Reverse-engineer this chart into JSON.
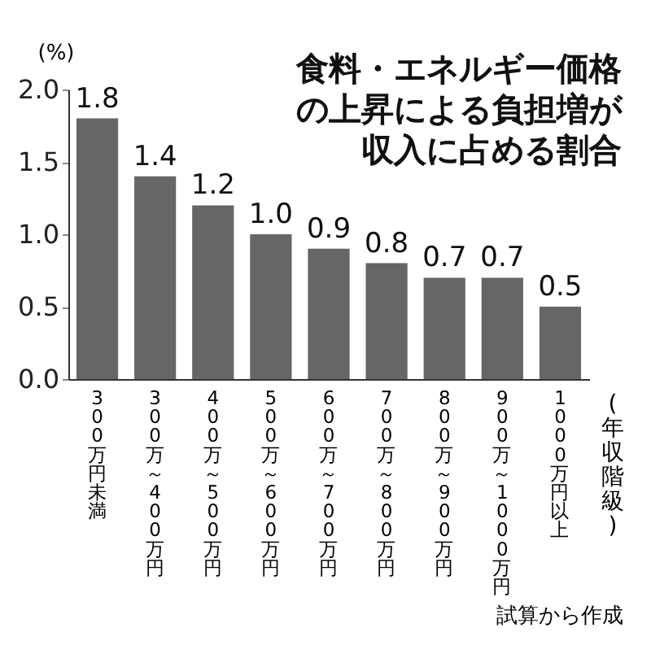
{
  "chart_data": {
    "type": "bar",
    "title": "食料・エネルギー価格の上昇による負担増が収入に占める割合",
    "ylabel": "(%)",
    "xlabel": "(年収階級)",
    "categories": [
      "300万円未満",
      "300万～400万円",
      "400万～500万円",
      "500万～600万円",
      "600万～700万円",
      "700万～800万円",
      "800万～900万円",
      "900万～1000万円",
      "1000万円以上"
    ],
    "values": [
      1.8,
      1.4,
      1.2,
      1.0,
      0.9,
      0.8,
      0.7,
      0.7,
      0.5
    ],
    "color": "#666666",
    "ylim": [
      0,
      2.0
    ],
    "yticks": [
      {
        "value": 0,
        "label": "0.0"
      },
      {
        "value": 0.5,
        "label": "0.5"
      },
      {
        "value": 1,
        "label": "1.0"
      },
      {
        "value": 1.5,
        "label": "1.5"
      },
      {
        "value": 2,
        "label": "2.0"
      }
    ],
    "grid": false,
    "data_labels": true,
    "value_labels": [
      "1.8",
      "1.4",
      "1.2",
      "1.0",
      "0.9",
      "0.8",
      "0.7",
      "0.7",
      "0.5"
    ],
    "annotations": [
      "試算から作成"
    ]
  }
}
